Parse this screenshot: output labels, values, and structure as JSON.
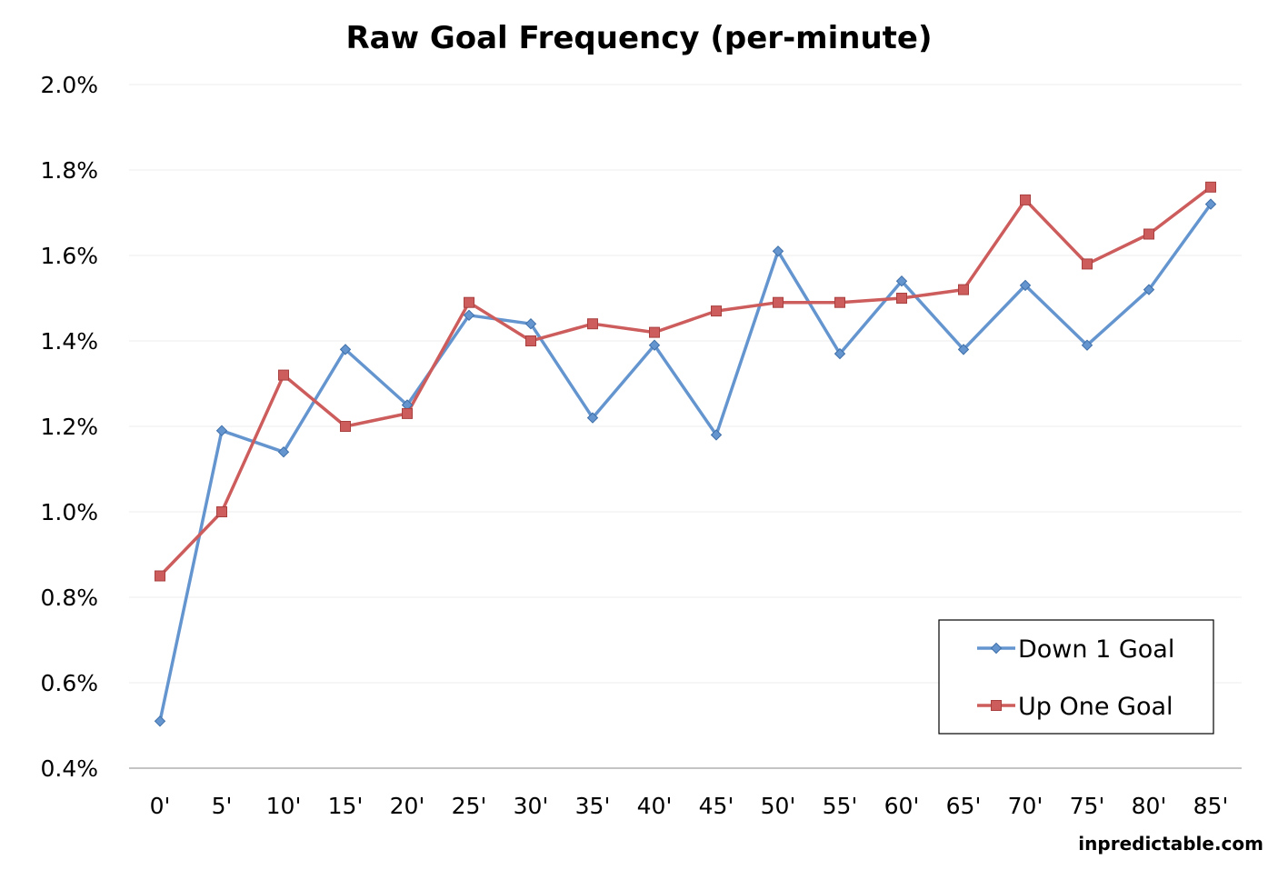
{
  "chart_data": {
    "type": "line",
    "title": "Raw Goal Frequency (per-minute)",
    "credit": "inpredictable.com",
    "xlabel": "",
    "ylabel": "",
    "ylim": [
      0.4,
      2.0
    ],
    "yticks": [
      "0.4%",
      "0.6%",
      "0.8%",
      "1.0%",
      "1.2%",
      "1.4%",
      "1.6%",
      "1.8%",
      "2.0%"
    ],
    "ytick_values": [
      0.4,
      0.6,
      0.8,
      1.0,
      1.2,
      1.4,
      1.6,
      1.8,
      2.0
    ],
    "categories": [
      "0'",
      "5'",
      "10'",
      "15'",
      "20'",
      "25'",
      "30'",
      "35'",
      "40'",
      "45'",
      "50'",
      "55'",
      "60'",
      "65'",
      "70'",
      "75'",
      "80'",
      "85'"
    ],
    "grid": true,
    "legend_position": "bottom-right",
    "series": [
      {
        "name": "Down 1 Goal",
        "color": "#6495cf",
        "marker": "diamond",
        "values": [
          0.51,
          1.19,
          1.14,
          1.38,
          1.25,
          1.46,
          1.44,
          1.22,
          1.39,
          1.18,
          1.61,
          1.37,
          1.54,
          1.38,
          1.53,
          1.39,
          1.52,
          1.72
        ]
      },
      {
        "name": "Up One Goal",
        "color": "#cd5c5c",
        "marker": "square",
        "values": [
          0.85,
          1.0,
          1.32,
          1.2,
          1.23,
          1.49,
          1.4,
          1.44,
          1.42,
          1.47,
          1.49,
          1.49,
          1.5,
          1.52,
          1.73,
          1.58,
          1.65,
          1.76
        ]
      }
    ]
  }
}
